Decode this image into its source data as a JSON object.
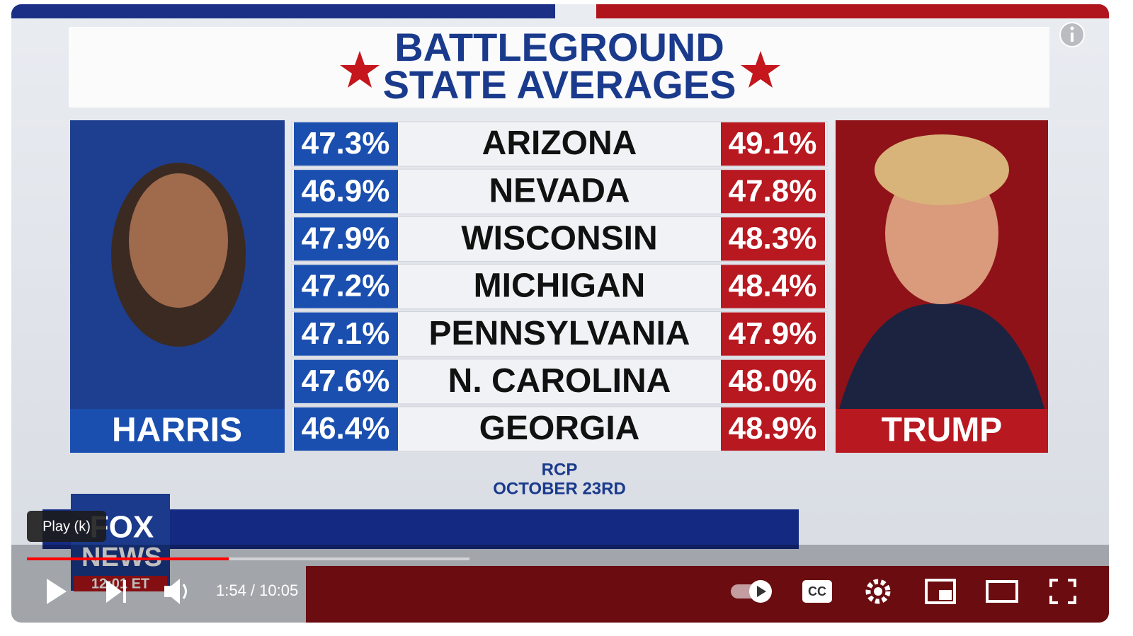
{
  "header": {
    "title_line1": "BATTLEGROUND",
    "title_line2": "STATE AVERAGES"
  },
  "candidates": {
    "left": "HARRIS",
    "right": "TRUMP"
  },
  "table": {
    "rows": [
      {
        "state": "ARIZONA",
        "harris": "47.3%",
        "trump": "49.1%"
      },
      {
        "state": "NEVADA",
        "harris": "46.9%",
        "trump": "47.8%"
      },
      {
        "state": "WISCONSIN",
        "harris": "47.9%",
        "trump": "48.3%"
      },
      {
        "state": "MICHIGAN",
        "harris": "47.2%",
        "trump": "48.4%"
      },
      {
        "state": "PENNSYLVANIA",
        "harris": "47.1%",
        "trump": "47.9%"
      },
      {
        "state": "N. CAROLINA",
        "harris": "47.6%",
        "trump": "48.0%"
      },
      {
        "state": "GEORGIA",
        "harris": "46.4%",
        "trump": "48.9%"
      }
    ]
  },
  "source": {
    "line1": "RCP",
    "line2": "OCTOBER 23RD"
  },
  "logo": {
    "line1": "FOX",
    "line2": "NEWS",
    "time": "12:01 ET"
  },
  "player": {
    "tooltip": "Play (k)",
    "time": "1:54 / 10:05",
    "cc": "CC"
  }
}
